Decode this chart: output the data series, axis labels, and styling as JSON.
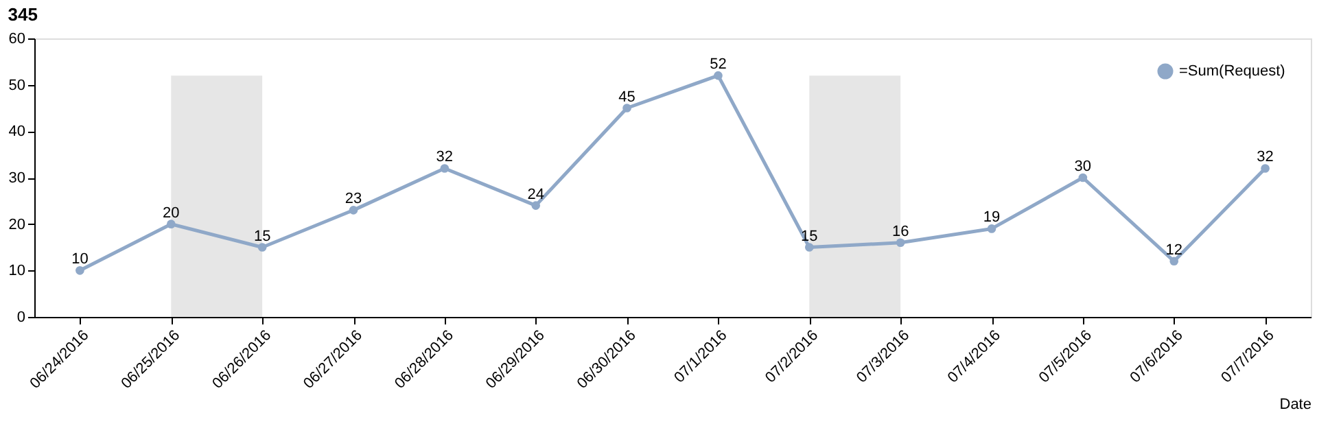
{
  "chart_data": {
    "type": "line",
    "title": "345",
    "xlabel": "Date",
    "categories": [
      "06/24/2016",
      "06/25/2016",
      "06/26/2016",
      "06/27/2016",
      "06/28/2016",
      "06/29/2016",
      "06/30/2016",
      "07/1/2016",
      "07/2/2016",
      "07/3/2016",
      "07/4/2016",
      "07/5/2016",
      "07/6/2016",
      "07/7/2016"
    ],
    "series": [
      {
        "name": "=Sum(Request)",
        "color": "#8fa8c8",
        "values": [
          10,
          20,
          15,
          23,
          32,
          24,
          45,
          52,
          15,
          16,
          19,
          30,
          12,
          32
        ]
      }
    ],
    "bands": [
      {
        "axis": "x",
        "from": "06/25/2016",
        "to": "06/26/2016",
        "color": "#e6e6e6"
      },
      {
        "axis": "x",
        "from": "07/2/2016",
        "to": "07/3/2016",
        "color": "#e6e6e6"
      }
    ],
    "ylim": [
      0,
      60
    ],
    "yticks": [
      0,
      10,
      20,
      30,
      40,
      50,
      60
    ],
    "grid": false,
    "legend": "top right",
    "marker": "circle",
    "line_style": "solid",
    "data_labels": true
  }
}
